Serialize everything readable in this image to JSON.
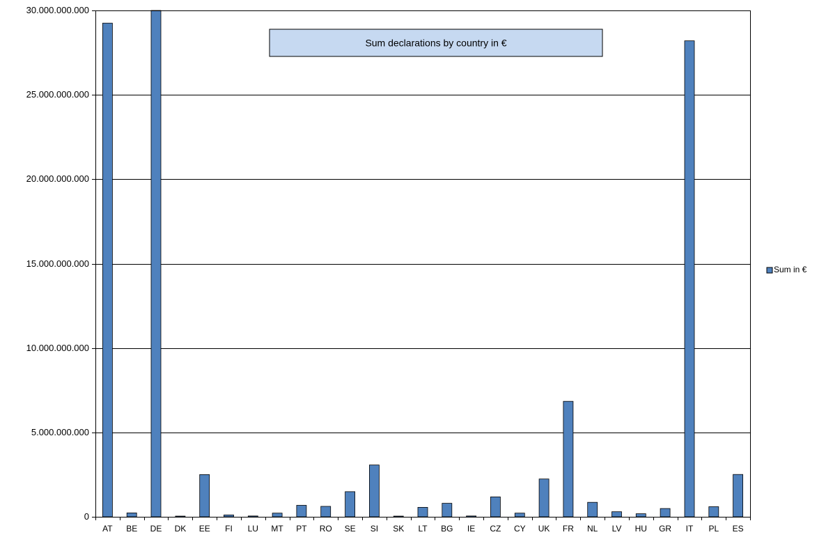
{
  "chart_data": {
    "type": "bar",
    "title": "Sum declarations by country in €",
    "xlabel": "",
    "ylabel": "",
    "ylim": [
      0,
      30000000000
    ],
    "y_ticks": [
      0,
      5000000000,
      10000000000,
      15000000000,
      20000000000,
      25000000000,
      30000000000
    ],
    "y_tick_labels": [
      "0",
      "5.000.000.000",
      "10.000.000.000",
      "15.000.000.000",
      "20.000.000.000",
      "25.000.000.000",
      "30.000.000.000"
    ],
    "grid": true,
    "legend_position": "right",
    "categories": [
      "AT",
      "BE",
      "DE",
      "DK",
      "EE",
      "FI",
      "LU",
      "MT",
      "PT",
      "RO",
      "SE",
      "SI",
      "SK",
      "LT",
      "BG",
      "IE",
      "CZ",
      "CY",
      "UK",
      "FR",
      "NL",
      "LV",
      "HU",
      "GR",
      "IT",
      "PL",
      "ES"
    ],
    "series": [
      {
        "name": "Sum in €",
        "color": "#4F81BD",
        "values": [
          29250000000,
          230000000,
          30000000000,
          40000000,
          2500000000,
          110000000,
          50000000,
          220000000,
          680000000,
          620000000,
          1490000000,
          3070000000,
          40000000,
          560000000,
          800000000,
          50000000,
          1180000000,
          220000000,
          2240000000,
          6840000000,
          860000000,
          300000000,
          180000000,
          490000000,
          28200000000,
          600000000,
          2510000000
        ]
      }
    ]
  }
}
